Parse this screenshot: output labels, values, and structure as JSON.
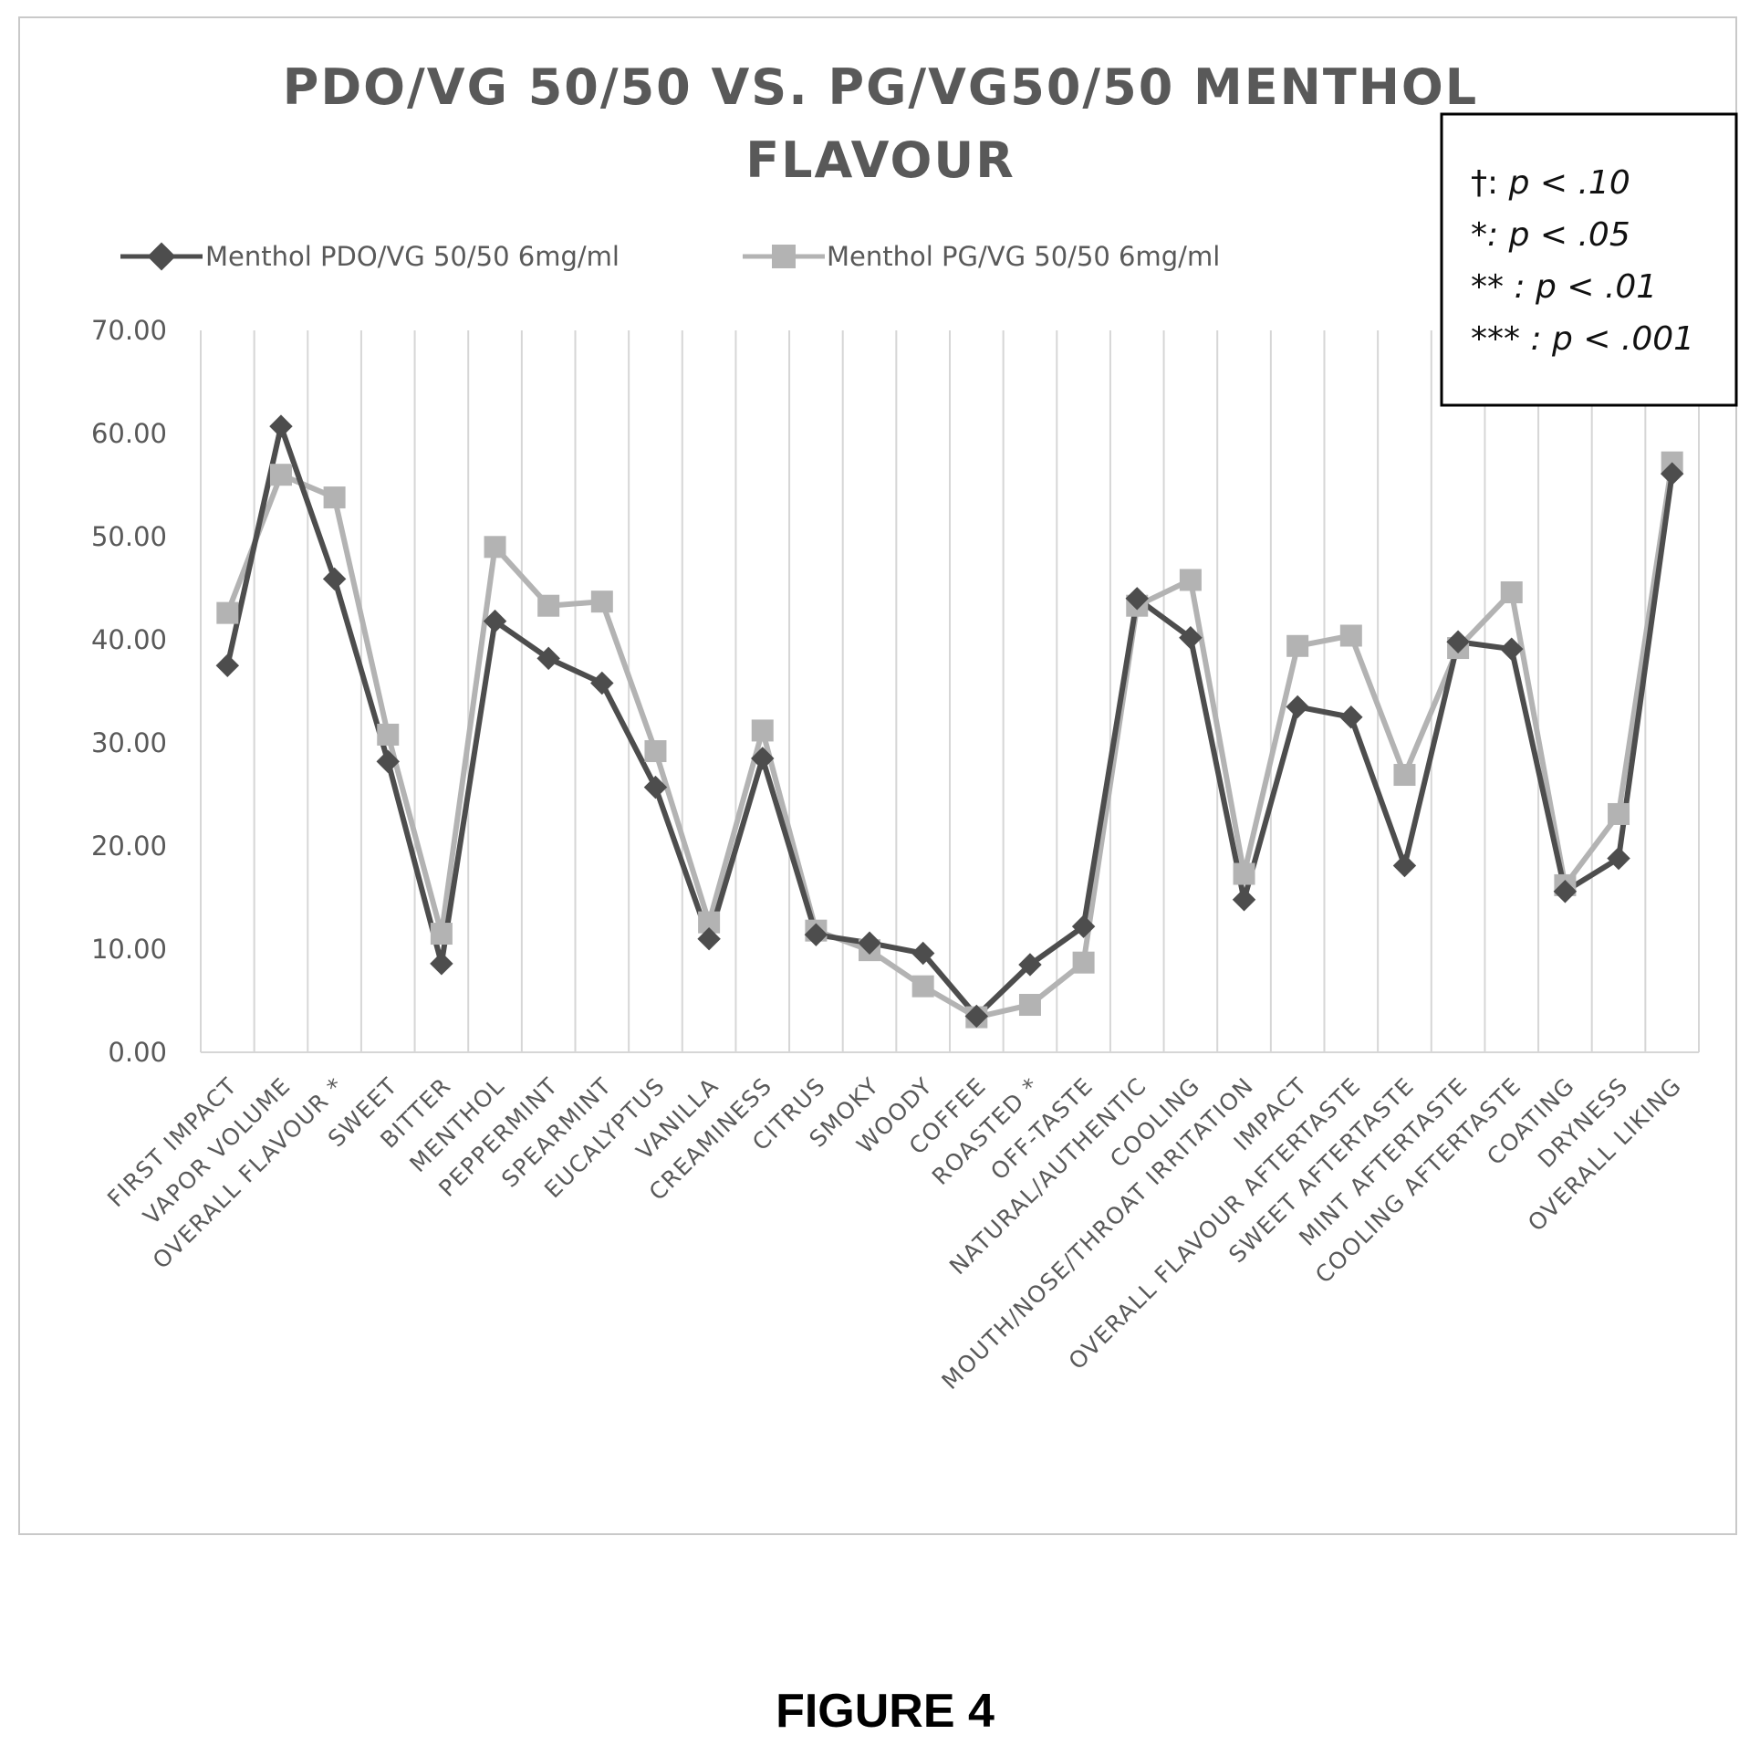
{
  "chart_data": {
    "type": "line",
    "title_lines": [
      "PDO/VG 50/50 VS. PG/VG50/50  MENTHOL",
      "FLAVOUR"
    ],
    "categories": [
      "FIRST IMPACT",
      "VAPOR VOLUME",
      "OVERALL FLAVOUR *",
      "SWEET",
      "BITTER",
      "MENTHOL",
      "PEPPERMINT",
      "SPEARMINT",
      "EUCALYPTUS",
      "VANILLA",
      "CREAMINESS",
      "CITRUS",
      "SMOKY",
      "WOODY",
      "COFFEE",
      "ROASTED *",
      "OFF-TASTE",
      "NATURAL/AUTHENTIC",
      "COOLING",
      "MOUTH/NOSE/THROAT IRRITATION",
      "IMPACT",
      "OVERALL FLAVOUR AFTERTASTE",
      "SWEET AFTERTASTE",
      "MINT AFTERTASTE",
      "COOLING AFTERTASTE",
      "COATING",
      "DRYNESS",
      "OVERALL LIKING"
    ],
    "series": [
      {
        "name": "Menthol PDO/VG 50/50  6mg/ml",
        "color": "#4d4d4d",
        "marker": "diamond",
        "values": [
          37.5,
          60.7,
          45.9,
          28.2,
          8.6,
          41.8,
          38.2,
          35.8,
          25.7,
          11.0,
          28.5,
          11.4,
          10.6,
          9.6,
          3.5,
          8.5,
          12.2,
          44.0,
          40.2,
          14.8,
          33.5,
          32.5,
          18.1,
          39.8,
          39.1,
          15.6,
          18.8,
          56.1
        ]
      },
      {
        "name": "Menthol PG/VG 50/50  6mg/ml",
        "color": "#b3b3b3",
        "marker": "square",
        "values": [
          42.6,
          56.0,
          53.8,
          30.8,
          11.5,
          49.0,
          43.3,
          43.7,
          29.2,
          12.6,
          31.2,
          11.8,
          9.9,
          6.4,
          3.4,
          4.6,
          8.7,
          43.3,
          45.8,
          17.3,
          39.4,
          40.4,
          26.9,
          39.2,
          44.6,
          16.2,
          23.1,
          57.2
        ]
      }
    ],
    "y_tick_labels": [
      "0.00",
      "10.00",
      "20.00",
      "30.00",
      "40.00",
      "50.00",
      "60.00",
      "70.00"
    ],
    "ylim": [
      0,
      70
    ],
    "grid": "vertical",
    "legend_position": "top"
  },
  "significance_box": {
    "lines": [
      {
        "symbol": "†: ",
        "text": "p < .10"
      },
      {
        "symbol": "*: ",
        "text": "p < .05"
      },
      {
        "symbol": "** : ",
        "text": "p < .01"
      },
      {
        "symbol": "*** : ",
        "text": "p < .001"
      }
    ]
  },
  "figure_label": "FIGURE 4"
}
